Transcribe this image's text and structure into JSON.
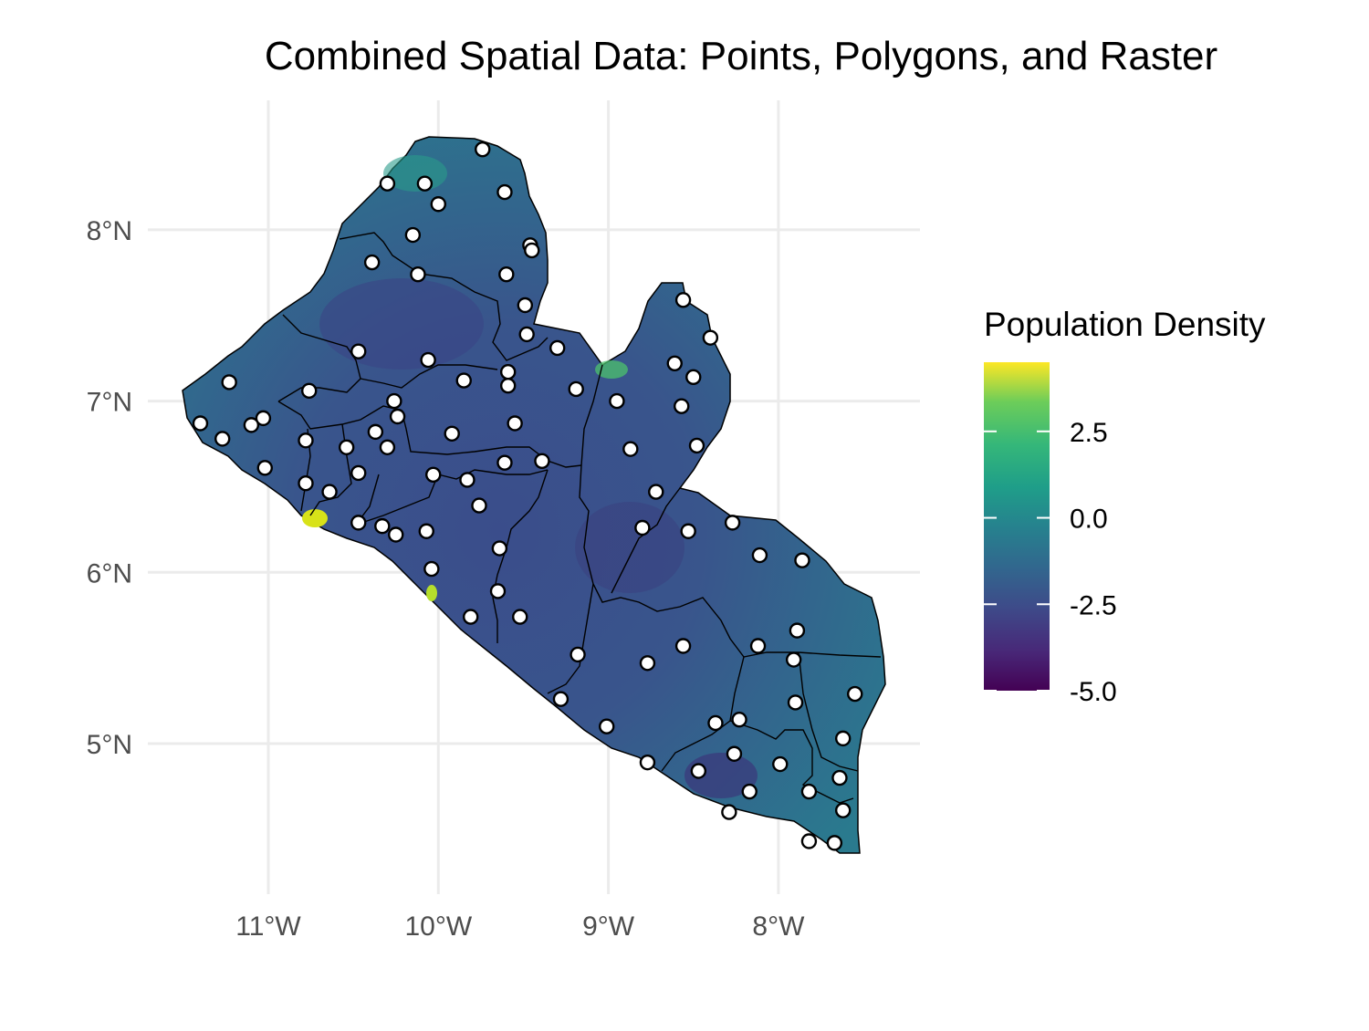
{
  "chart_data": {
    "type": "map",
    "title": "Combined Spatial Data: Points, Polygons, and Raster",
    "region": "Liberia",
    "xlim": [
      -11.9,
      -7.2
    ],
    "ylim": [
      4.15,
      8.75
    ],
    "x_ticks": [
      -11,
      -10,
      -9,
      -8
    ],
    "x_tick_labels": [
      "11°W",
      "10°W",
      "9°W",
      "8°W"
    ],
    "y_ticks": [
      5,
      6,
      7,
      8
    ],
    "y_tick_labels": [
      "5°N",
      "6°N",
      "7°N",
      "8°N"
    ],
    "grid": true,
    "legend": {
      "title": "Population Density",
      "position": "right",
      "colormap": "viridis",
      "range": [
        -5.0,
        4.5
      ],
      "breaks": [
        2.5,
        0.0,
        -2.5,
        -5.0
      ],
      "break_labels": [
        "2.5",
        "0.0",
        "-2.5",
        "-5.0"
      ]
    },
    "layers": {
      "raster": "population density (log scale), viridis palette",
      "polygons": "county boundaries, black outline",
      "points": "white filled circles with black outline"
    },
    "points": [
      [
        -9.74,
        8.47
      ],
      [
        -10.3,
        8.27
      ],
      [
        -10.08,
        8.27
      ],
      [
        -9.61,
        8.22
      ],
      [
        -10.0,
        8.15
      ],
      [
        -10.15,
        7.97
      ],
      [
        -9.46,
        7.91
      ],
      [
        -9.45,
        7.88
      ],
      [
        -10.39,
        7.81
      ],
      [
        -10.12,
        7.74
      ],
      [
        -9.6,
        7.74
      ],
      [
        -8.56,
        7.59
      ],
      [
        -9.49,
        7.56
      ],
      [
        -8.4,
        7.37
      ],
      [
        -9.48,
        7.39
      ],
      [
        -9.3,
        7.31
      ],
      [
        -10.47,
        7.29
      ],
      [
        -10.06,
        7.24
      ],
      [
        -8.61,
        7.22
      ],
      [
        -8.5,
        7.14
      ],
      [
        -9.59,
        7.17
      ],
      [
        -9.59,
        7.09
      ],
      [
        -9.85,
        7.12
      ],
      [
        -9.19,
        7.07
      ],
      [
        -11.23,
        7.11
      ],
      [
        -10.76,
        7.06
      ],
      [
        -10.26,
        7.0
      ],
      [
        -8.95,
        7.0
      ],
      [
        -8.57,
        6.97
      ],
      [
        -10.24,
        6.91
      ],
      [
        -11.03,
        6.9
      ],
      [
        -11.1,
        6.86
      ],
      [
        -11.4,
        6.87
      ],
      [
        -9.55,
        6.87
      ],
      [
        -10.37,
        6.82
      ],
      [
        -9.92,
        6.81
      ],
      [
        -11.27,
        6.78
      ],
      [
        -10.78,
        6.77
      ],
      [
        -10.3,
        6.73
      ],
      [
        -10.54,
        6.73
      ],
      [
        -8.48,
        6.74
      ],
      [
        -8.87,
        6.72
      ],
      [
        -9.39,
        6.65
      ],
      [
        -9.61,
        6.64
      ],
      [
        -11.02,
        6.61
      ],
      [
        -10.47,
        6.58
      ],
      [
        -10.03,
        6.57
      ],
      [
        -9.83,
        6.54
      ],
      [
        -10.78,
        6.52
      ],
      [
        -10.64,
        6.47
      ],
      [
        -8.72,
        6.47
      ],
      [
        -9.76,
        6.39
      ],
      [
        -10.47,
        6.29
      ],
      [
        -8.8,
        6.26
      ],
      [
        -8.53,
        6.24
      ],
      [
        -8.27,
        6.29
      ],
      [
        -10.33,
        6.27
      ],
      [
        -10.25,
        6.22
      ],
      [
        -10.07,
        6.24
      ],
      [
        -9.64,
        6.14
      ],
      [
        -8.11,
        6.1
      ],
      [
        -7.86,
        6.07
      ],
      [
        -10.04,
        6.02
      ],
      [
        -9.65,
        5.89
      ],
      [
        -9.52,
        5.74
      ],
      [
        -9.81,
        5.74
      ],
      [
        -7.89,
        5.66
      ],
      [
        -8.12,
        5.57
      ],
      [
        -8.56,
        5.57
      ],
      [
        -7.91,
        5.49
      ],
      [
        -9.18,
        5.52
      ],
      [
        -8.77,
        5.47
      ],
      [
        -7.55,
        5.29
      ],
      [
        -9.28,
        5.26
      ],
      [
        -7.9,
        5.24
      ],
      [
        -8.23,
        5.14
      ],
      [
        -8.37,
        5.12
      ],
      [
        -9.01,
        5.1
      ],
      [
        -7.62,
        5.03
      ],
      [
        -8.26,
        4.94
      ],
      [
        -7.99,
        4.88
      ],
      [
        -8.77,
        4.89
      ],
      [
        -8.47,
        4.84
      ],
      [
        -7.64,
        4.8
      ],
      [
        -8.17,
        4.72
      ],
      [
        -7.82,
        4.72
      ],
      [
        -7.62,
        4.61
      ],
      [
        -8.29,
        4.6
      ],
      [
        -7.82,
        4.43
      ],
      [
        -7.67,
        4.42
      ]
    ]
  }
}
